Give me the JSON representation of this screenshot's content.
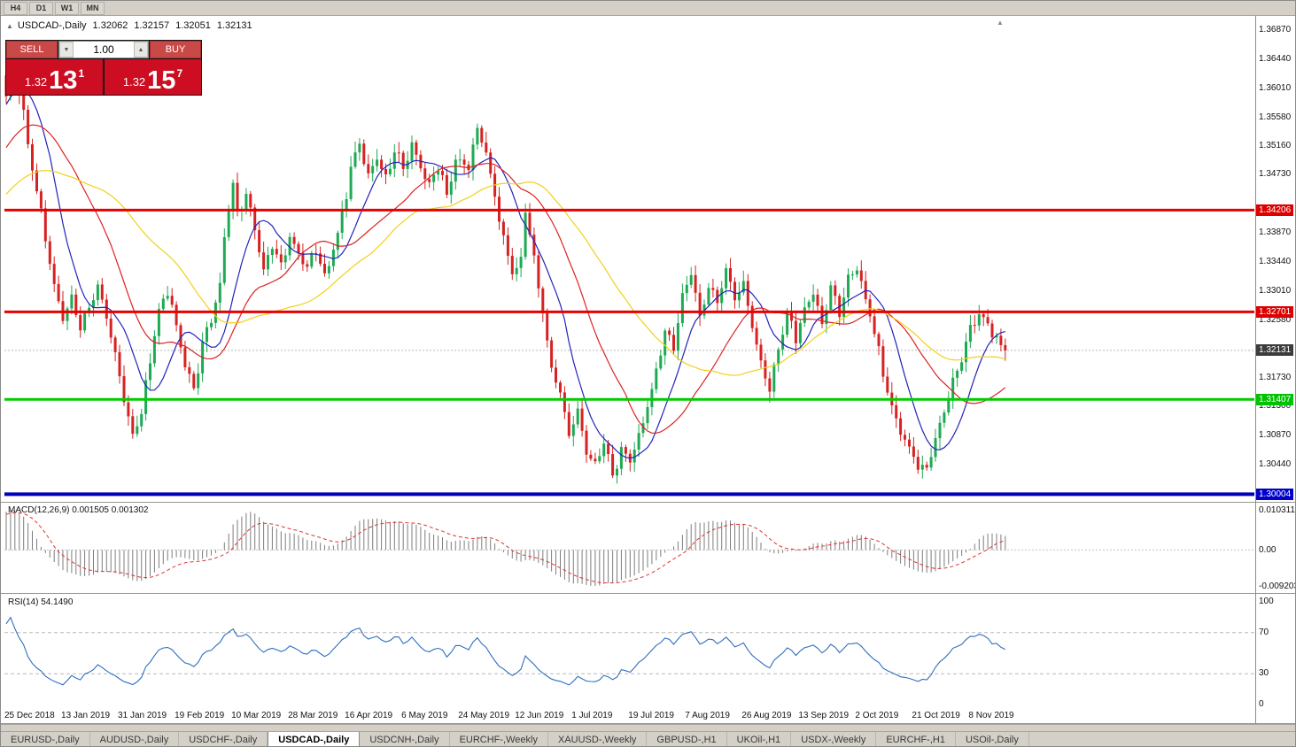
{
  "toolbar": {
    "timeframes": [
      "H4",
      "D1",
      "W1",
      "MN"
    ]
  },
  "chart_header": {
    "symbol": "USDCAD-,Daily",
    "open": "1.32062",
    "high": "1.32157",
    "low": "1.32051",
    "close": "1.32131"
  },
  "icons": {
    "collapse": "▲",
    "volume_down": "▼",
    "volume_up": "▲",
    "scroll_marker": "▲"
  },
  "trade_panel": {
    "sell_label": "SELL",
    "buy_label": "BUY",
    "volume": "1.00",
    "sell_price": {
      "prefix": "1.32",
      "big": "13",
      "sup": "1"
    },
    "buy_price": {
      "prefix": "1.32",
      "big": "15",
      "sup": "7"
    }
  },
  "price_axis": {
    "labels": [
      "1.36870",
      "1.36440",
      "1.36010",
      "1.35580",
      "1.35160",
      "1.34730",
      "1.33870",
      "1.33440",
      "1.33010",
      "1.32580",
      "1.31730",
      "1.31300",
      "1.30870",
      "1.30440"
    ],
    "tags": [
      {
        "text": "1.34206",
        "value": 1.34206,
        "bg": "#dd0000"
      },
      {
        "text": "1.32701",
        "value": 1.32701,
        "bg": "#dd0000"
      },
      {
        "text": "1.32131",
        "value": 1.32131,
        "bg": "#3c3c3c"
      },
      {
        "text": "1.31407",
        "value": 1.31407,
        "bg": "#00c300"
      },
      {
        "text": "1.30004",
        "value": 1.30004,
        "bg": "#0000c8"
      }
    ]
  },
  "macd_panel": {
    "label": "MACD(12,26,9) 0.001505 0.001302",
    "axis": [
      {
        "text": "0.010311",
        "value": 0.010311
      },
      {
        "text": "0.00",
        "value": 0
      },
      {
        "text": "-0.009203",
        "value": -0.009203
      }
    ]
  },
  "rsi_panel": {
    "label": "RSI(14) 54.1490",
    "axis": [
      {
        "text": "100",
        "value": 100
      },
      {
        "text": "70",
        "value": 70
      },
      {
        "text": "30",
        "value": 30
      },
      {
        "text": "0",
        "value": 0
      }
    ]
  },
  "date_axis": [
    "25 Dec 2018",
    "13 Jan 2019",
    "31 Jan 2019",
    "19 Feb 2019",
    "10 Mar 2019",
    "28 Mar 2019",
    "16 Apr 2019",
    "6 May 2019",
    "24 May 2019",
    "12 Jun 2019",
    "1 Jul 2019",
    "19 Jul 2019",
    "7 Aug 2019",
    "26 Aug 2019",
    "13 Sep 2019",
    "2 Oct 2019",
    "21 Oct 2019",
    "8 Nov 2019"
  ],
  "tabs": [
    {
      "label": "EURUSD-,Daily",
      "active": false
    },
    {
      "label": "AUDUSD-,Daily",
      "active": false
    },
    {
      "label": "USDCHF-,Daily",
      "active": false
    },
    {
      "label": "USDCAD-,Daily",
      "active": true
    },
    {
      "label": "USDCNH-,Daily",
      "active": false
    },
    {
      "label": "EURCHF-,Weekly",
      "active": false
    },
    {
      "label": "XAUUSD-,Weekly",
      "active": false
    },
    {
      "label": "GBPUSD-,H1",
      "active": false
    },
    {
      "label": "UKOil-,H1",
      "active": false
    },
    {
      "label": "USDX-,Weekly",
      "active": false
    },
    {
      "label": "EURCHF-,H1",
      "active": false
    },
    {
      "label": "USOil-,Daily",
      "active": false
    }
  ],
  "chart_data": {
    "type": "candlestick",
    "symbol": "USDCAD",
    "timeframe": "Daily",
    "candles_count": 230,
    "x_tick_step": 13,
    "price_range_top": 1.3704,
    "price_range_bottom": 1.29904,
    "current_price": 1.32131,
    "ohlc_current": {
      "open": 1.32062,
      "high": 1.32157,
      "low": 1.32051,
      "close": 1.32131
    },
    "pre_window": {
      "days": 50,
      "start": 1.333,
      "end": 1.362
    },
    "close_keyframes": [
      [
        0,
        1.3585
      ],
      [
        1,
        1.3635
      ],
      [
        3,
        1.36
      ],
      [
        5,
        1.352
      ],
      [
        7,
        1.345
      ],
      [
        9,
        1.338
      ],
      [
        11,
        1.331
      ],
      [
        13,
        1.326
      ],
      [
        15,
        1.329
      ],
      [
        17,
        1.3245
      ],
      [
        19,
        1.3275
      ],
      [
        21,
        1.331
      ],
      [
        23,
        1.326
      ],
      [
        25,
        1.321
      ],
      [
        27,
        1.314
      ],
      [
        29,
        1.3085
      ],
      [
        31,
        1.312
      ],
      [
        33,
        1.32
      ],
      [
        35,
        1.327
      ],
      [
        37,
        1.33
      ],
      [
        39,
        1.325
      ],
      [
        41,
        1.319
      ],
      [
        43,
        1.3155
      ],
      [
        45,
        1.322
      ],
      [
        47,
        1.326
      ],
      [
        49,
        1.331
      ],
      [
        50,
        1.338
      ],
      [
        52,
        1.346
      ],
      [
        53,
        1.342
      ],
      [
        55,
        1.344
      ],
      [
        57,
        1.339
      ],
      [
        59,
        1.333
      ],
      [
        61,
        1.337
      ],
      [
        63,
        1.334
      ],
      [
        65,
        1.3385
      ],
      [
        67,
        1.3355
      ],
      [
        69,
        1.3335
      ],
      [
        71,
        1.3365
      ],
      [
        73,
        1.3325
      ],
      [
        76,
        1.338
      ],
      [
        79,
        1.348
      ],
      [
        81,
        1.352
      ],
      [
        83,
        1.347
      ],
      [
        85,
        1.35
      ],
      [
        87,
        1.3465
      ],
      [
        89,
        1.351
      ],
      [
        91,
        1.3485
      ],
      [
        93,
        1.352
      ],
      [
        95,
        1.3485
      ],
      [
        97,
        1.3455
      ],
      [
        99,
        1.3485
      ],
      [
        101,
        1.3445
      ],
      [
        103,
        1.35
      ],
      [
        106,
        1.348
      ],
      [
        108,
        1.3545
      ],
      [
        110,
        1.35
      ],
      [
        112,
        1.344
      ],
      [
        114,
        1.3375
      ],
      [
        116,
        1.333
      ],
      [
        118,
        1.3345
      ],
      [
        119,
        1.3425
      ],
      [
        121,
        1.335
      ],
      [
        123,
        1.327
      ],
      [
        125,
        1.3185
      ],
      [
        127,
        1.315
      ],
      [
        129,
        1.309
      ],
      [
        131,
        1.312
      ],
      [
        133,
        1.306
      ],
      [
        135,
        1.304
      ],
      [
        137,
        1.3075
      ],
      [
        139,
        1.303
      ],
      [
        141,
        1.3065
      ],
      [
        143,
        1.305
      ],
      [
        145,
        1.309
      ],
      [
        147,
        1.313
      ],
      [
        149,
        1.3185
      ],
      [
        151,
        1.3245
      ],
      [
        153,
        1.3215
      ],
      [
        155,
        1.329
      ],
      [
        157,
        1.333
      ],
      [
        159,
        1.326
      ],
      [
        161,
        1.331
      ],
      [
        163,
        1.328
      ],
      [
        165,
        1.333
      ],
      [
        167,
        1.329
      ],
      [
        169,
        1.331
      ],
      [
        171,
        1.325
      ],
      [
        173,
        1.3195
      ],
      [
        175,
        1.3155
      ],
      [
        177,
        1.322
      ],
      [
        179,
        1.327
      ],
      [
        181,
        1.323
      ],
      [
        183,
        1.327
      ],
      [
        185,
        1.33
      ],
      [
        187,
        1.325
      ],
      [
        189,
        1.3305
      ],
      [
        191,
        1.3265
      ],
      [
        193,
        1.332
      ],
      [
        195,
        1.334
      ],
      [
        197,
        1.329
      ],
      [
        199,
        1.324
      ],
      [
        201,
        1.318
      ],
      [
        203,
        1.313
      ],
      [
        205,
        1.309
      ],
      [
        207,
        1.3065
      ],
      [
        209,
        1.3045
      ],
      [
        211,
        1.304
      ],
      [
        213,
        1.3085
      ],
      [
        215,
        1.3125
      ],
      [
        217,
        1.3165
      ],
      [
        219,
        1.3205
      ],
      [
        221,
        1.3245
      ],
      [
        223,
        1.327
      ],
      [
        225,
        1.325
      ],
      [
        227,
        1.323
      ],
      [
        229,
        1.32131
      ]
    ],
    "moving_averages": [
      {
        "period": 10,
        "color_key": "ma_fast"
      },
      {
        "period": 24,
        "color_key": "ma_mid"
      },
      {
        "period": 45,
        "color_key": "ma_slow"
      }
    ],
    "hlines": [
      {
        "value": 1.34206,
        "color": "#e60000",
        "width": 3
      },
      {
        "value": 1.32701,
        "color": "#e60000",
        "width": 3
      },
      {
        "value": 1.31407,
        "color": "#00cc00",
        "width": 3
      },
      {
        "value": 1.30004,
        "color": "#0000bb",
        "width": 4
      }
    ],
    "colors": {
      "bull": "#1daa52",
      "bear": "#d62222",
      "ma_fast": "#2222bb",
      "ma_mid": "#dd2222",
      "ma_slow": "#f2d019",
      "hist": "#7d7d7d",
      "signal": "#dd3333",
      "rsi": "#2e6fbe",
      "current_line": "#b9b9b9",
      "level_line": "#b8b8b8"
    },
    "macd": {
      "fast": 12,
      "slow": 26,
      "signal": 9,
      "value": 0.001505,
      "signal_value": 0.001302,
      "range_max": 0.010311,
      "range_min": -0.009203
    },
    "rsi": {
      "period": 14,
      "value": 54.149,
      "levels": [
        70,
        30
      ],
      "range": [
        0,
        100
      ]
    }
  }
}
